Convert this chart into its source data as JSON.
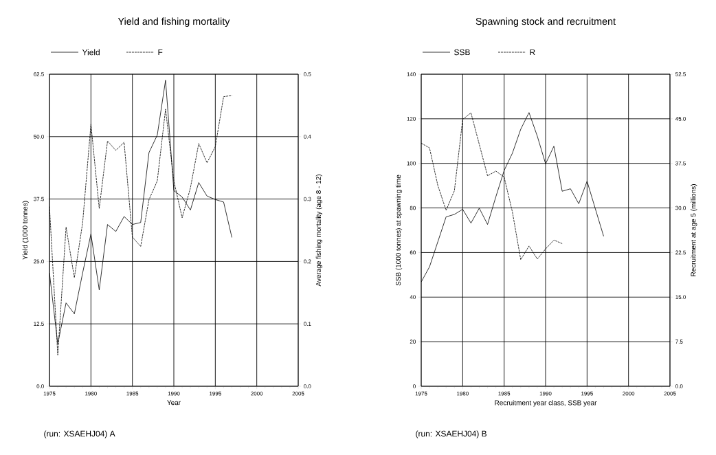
{
  "chart_data": [
    {
      "type": "line",
      "title": "Yield and fishing mortality",
      "xlabel": "Year",
      "ylabel": "Yield (1000 tonnes)",
      "y2label": "Average fishing mortality (age 8 - 12)",
      "annotations": [
        "(run: XSAEHJ04) A"
      ],
      "x": [
        1975,
        1976,
        1977,
        1978,
        1979,
        1980,
        1981,
        1982,
        1983,
        1984,
        1985,
        1986,
        1987,
        1988,
        1989,
        1990,
        1991,
        1992,
        1993,
        1994,
        1995,
        1996,
        1997
      ],
      "xlim": [
        1975,
        2005
      ],
      "xticks": [
        1975,
        1980,
        1985,
        1990,
        1995,
        2000,
        2005
      ],
      "ylim": [
        0,
        62.5
      ],
      "yticks": [
        {
          "value": 0,
          "label": "0.0"
        },
        12.5,
        {
          "value": 25,
          "label": "25.0"
        },
        37.5,
        {
          "value": 50,
          "label": "50.0"
        },
        62.5
      ],
      "y2lim": [
        0,
        0.5
      ],
      "y2ticks": [
        {
          "value": 0,
          "label": "0.0"
        },
        0.1,
        0.2,
        0.3,
        0.4,
        0.5
      ],
      "grid": true,
      "legend": "top left",
      "series": [
        {
          "name": "Yield",
          "color": "#000000",
          "line_style": "solid",
          "values": [
            22.7,
            8.5,
            16.7,
            14.5,
            22.7,
            30.5,
            19.3,
            32.4,
            31.0,
            34.0,
            32.4,
            32.8,
            46.8,
            50.3,
            61.3,
            39.2,
            37.9,
            35.3,
            40.8,
            38.1,
            37.4,
            36.9,
            29.8
          ]
        },
        {
          "name": "F",
          "color": "#000000",
          "line_style": "dashed",
          "axis": "y2",
          "values": [
            0.288,
            0.05,
            0.255,
            0.174,
            0.262,
            0.42,
            0.285,
            0.393,
            0.378,
            0.391,
            0.239,
            0.224,
            0.299,
            0.329,
            0.444,
            0.329,
            0.27,
            0.318,
            0.389,
            0.358,
            0.384,
            0.464,
            0.466
          ]
        }
      ]
    },
    {
      "type": "line",
      "title": "Spawning stock and recruitment",
      "xlabel": "Recruitment year class, SSB year",
      "ylabel": "SSB (1000 tonnes) at spawning time",
      "y2label": "Recruitment at age 5 (millions)",
      "annotations": [
        "(run: XSAEHJ04) B"
      ],
      "x": [
        1975,
        1976,
        1977,
        1978,
        1979,
        1980,
        1981,
        1982,
        1983,
        1984,
        1985,
        1986,
        1987,
        1988,
        1989,
        1990,
        1991,
        1992,
        1993,
        1994,
        1995,
        1996,
        1997
      ],
      "xlim": [
        1975,
        2005
      ],
      "xticks": [
        1975,
        1980,
        1985,
        1990,
        1995,
        2000,
        2005
      ],
      "ylim": [
        0,
        140
      ],
      "yticks": [
        0,
        20,
        40,
        60,
        80,
        100,
        120,
        140
      ],
      "y2lim": [
        0,
        52.5
      ],
      "y2ticks": [
        {
          "value": 0,
          "label": "0.0"
        },
        7.5,
        {
          "value": 15,
          "label": "15.0"
        },
        22.5,
        {
          "value": 30,
          "label": "30.0"
        },
        37.5,
        {
          "value": 45,
          "label": "45.0"
        },
        52.5
      ],
      "grid": true,
      "legend": "top left",
      "series": [
        {
          "name": "SSB",
          "color": "#000000",
          "line_style": "solid",
          "values": [
            46.8,
            53.6,
            64.8,
            76.0,
            77.1,
            79.4,
            73.2,
            79.9,
            72.6,
            85.0,
            96.8,
            104.6,
            115.3,
            122.8,
            112.2,
            99.8,
            107.7,
            87.5,
            88.6,
            81.9,
            92.0,
            79.6,
            67.3
          ]
        },
        {
          "name": "R",
          "color": "#000000",
          "line_style": "dashed",
          "axis": "y2",
          "x": [
            1975,
            1976,
            1977,
            1978,
            1979,
            1980,
            1981,
            1982,
            1983,
            1984,
            1985,
            1986,
            1987,
            1988,
            1989,
            1990,
            1991,
            1992
          ],
          "values": [
            40.9,
            40.1,
            33.8,
            29.6,
            32.9,
            44.9,
            46.0,
            40.7,
            35.4,
            36.2,
            35.2,
            29.3,
            21.3,
            23.6,
            21.4,
            23.1,
            24.6,
            24.0
          ]
        }
      ]
    }
  ]
}
